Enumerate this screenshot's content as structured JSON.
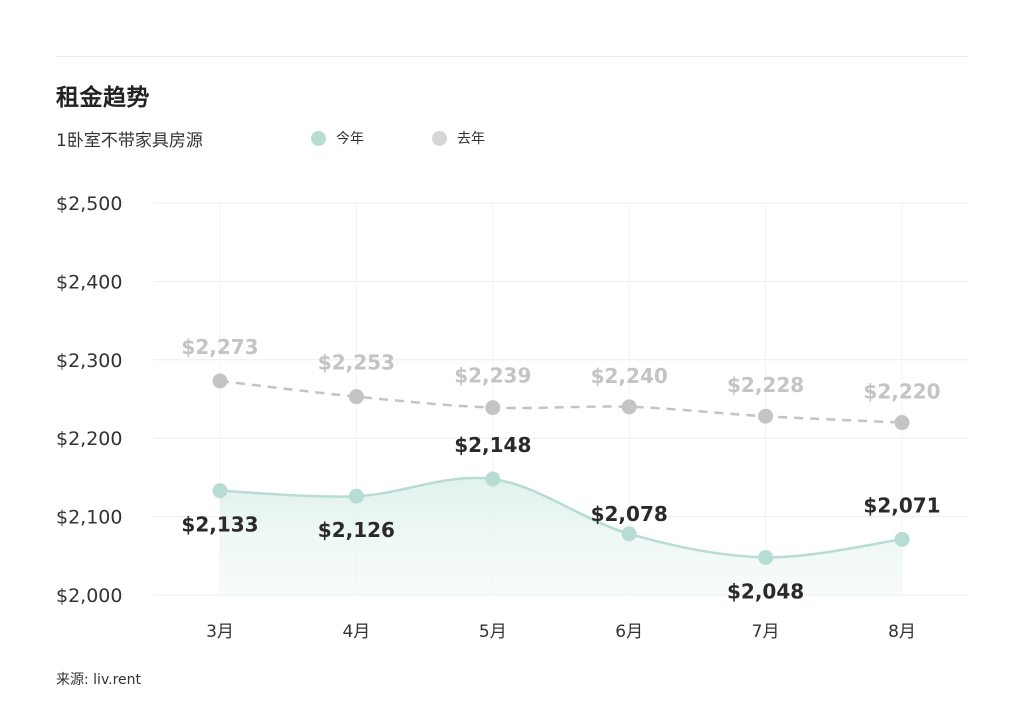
{
  "header": {
    "title": "租金趋势",
    "subtitle": "1卧室不带家具房源"
  },
  "legend": {
    "current_label": "今年",
    "previous_label": "去年"
  },
  "source": "来源: liv.rent",
  "colors": {
    "current": "#b6dcd3",
    "previous": "#c4c4c4",
    "fill": "#eaf6f3"
  },
  "chart_data": {
    "type": "line",
    "categories": [
      "3月",
      "4月",
      "5月",
      "6月",
      "7月",
      "8月"
    ],
    "ylim": [
      2000,
      2500
    ],
    "yticks": [
      2000,
      2100,
      2200,
      2300,
      2400,
      2500
    ],
    "ytick_labels": [
      "$2,000",
      "$2,100",
      "$2,200",
      "$2,300",
      "$2,400",
      "$2,500"
    ],
    "grid": true,
    "legend_position": "top",
    "series": [
      {
        "name": "今年",
        "values": [
          2133,
          2126,
          2148,
          2078,
          2048,
          2071
        ],
        "labels": [
          "$2,133",
          "$2,126",
          "$2,148",
          "$2,078",
          "$2,048",
          "$2,071"
        ],
        "style": "solid",
        "area": true
      },
      {
        "name": "去年",
        "values": [
          2273,
          2253,
          2239,
          2240,
          2228,
          2220
        ],
        "labels": [
          "$2,273",
          "$2,253",
          "$2,239",
          "$2,240",
          "$2,228",
          "$2,220"
        ],
        "style": "dashed",
        "area": false
      }
    ]
  }
}
